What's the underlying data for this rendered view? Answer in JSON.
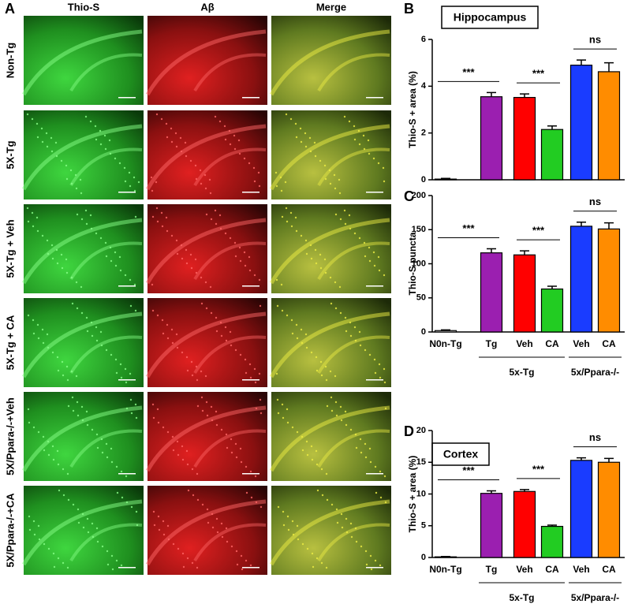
{
  "panel_a": {
    "letter": "A",
    "columns": [
      "Thio-S",
      "Aβ",
      "Merge"
    ],
    "rows": [
      "Non-Tg",
      "5X-Tg",
      "5X-Tg + Veh",
      "5X-Tg + CA",
      "5X/Ppara-/-+Veh",
      "5X/Ppara-/-+CA"
    ]
  },
  "chart_data": [
    {
      "type": "bar",
      "letter": "B",
      "title": "Hippocampus",
      "y_label": "Thio-S + area (%)",
      "categories": [
        null,
        null,
        null,
        null,
        null,
        null
      ],
      "values": [
        0.03,
        3.55,
        3.52,
        2.15,
        4.9,
        4.62
      ],
      "errors": [
        0.03,
        0.18,
        0.15,
        0.15,
        0.22,
        0.38
      ],
      "colors": [
        "#ffffff",
        "#9b1fb0",
        "#ff0000",
        "#22cc22",
        "#1a3cff",
        "#ff8c00"
      ],
      "ylim": [
        0,
        6
      ],
      "yticks": [
        0,
        2,
        4,
        6
      ],
      "comparisons": [
        {
          "label": "***",
          "between": [
            0,
            1
          ]
        },
        {
          "label": "***",
          "between": [
            2,
            3
          ]
        },
        {
          "label": "ns",
          "between": [
            4,
            5
          ]
        }
      ]
    },
    {
      "type": "bar",
      "letter": "C",
      "y_label": "Thio-S puncta",
      "categories": [
        "N0n-Tg",
        "Tg",
        "Veh",
        "CA",
        "Veh",
        "CA"
      ],
      "values": [
        2,
        116,
        113,
        63,
        155,
        151
      ],
      "errors": [
        1,
        6,
        6,
        4,
        6,
        9
      ],
      "colors": [
        "#ffffff",
        "#9b1fb0",
        "#ff0000",
        "#22cc22",
        "#1a3cff",
        "#ff8c00"
      ],
      "ylim": [
        0,
        200
      ],
      "yticks": [
        0,
        50,
        100,
        150,
        200
      ],
      "comparisons": [
        {
          "label": "***",
          "between": [
            0,
            1
          ]
        },
        {
          "label": "***",
          "between": [
            2,
            3
          ]
        },
        {
          "label": "ns",
          "between": [
            4,
            5
          ]
        }
      ],
      "groups": [
        {
          "label": "5x-Tg",
          "between": [
            1,
            3
          ]
        },
        {
          "label": "5x/Ppara-/-",
          "between": [
            4,
            5
          ]
        }
      ]
    },
    {
      "type": "bar",
      "letter": "D",
      "title": "Cortex",
      "y_label": "Thio-S + area (%)",
      "categories": [
        "N0n-Tg",
        "Tg",
        "Veh",
        "CA",
        "Veh",
        "CA"
      ],
      "values": [
        0.1,
        10.1,
        10.4,
        4.9,
        15.3,
        15.0
      ],
      "errors": [
        0.05,
        0.4,
        0.3,
        0.2,
        0.4,
        0.6
      ],
      "colors": [
        "#ffffff",
        "#9b1fb0",
        "#ff0000",
        "#22cc22",
        "#1a3cff",
        "#ff8c00"
      ],
      "ylim": [
        0,
        20
      ],
      "yticks": [
        0,
        5,
        10,
        15,
        20
      ],
      "comparisons": [
        {
          "label": "***",
          "between": [
            0,
            1
          ]
        },
        {
          "label": "***",
          "between": [
            2,
            3
          ]
        },
        {
          "label": "ns",
          "between": [
            4,
            5
          ]
        }
      ],
      "groups": [
        {
          "label": "5x-Tg",
          "between": [
            1,
            3
          ]
        },
        {
          "label": "5x/Ppara-/-",
          "between": [
            4,
            5
          ]
        }
      ]
    }
  ]
}
